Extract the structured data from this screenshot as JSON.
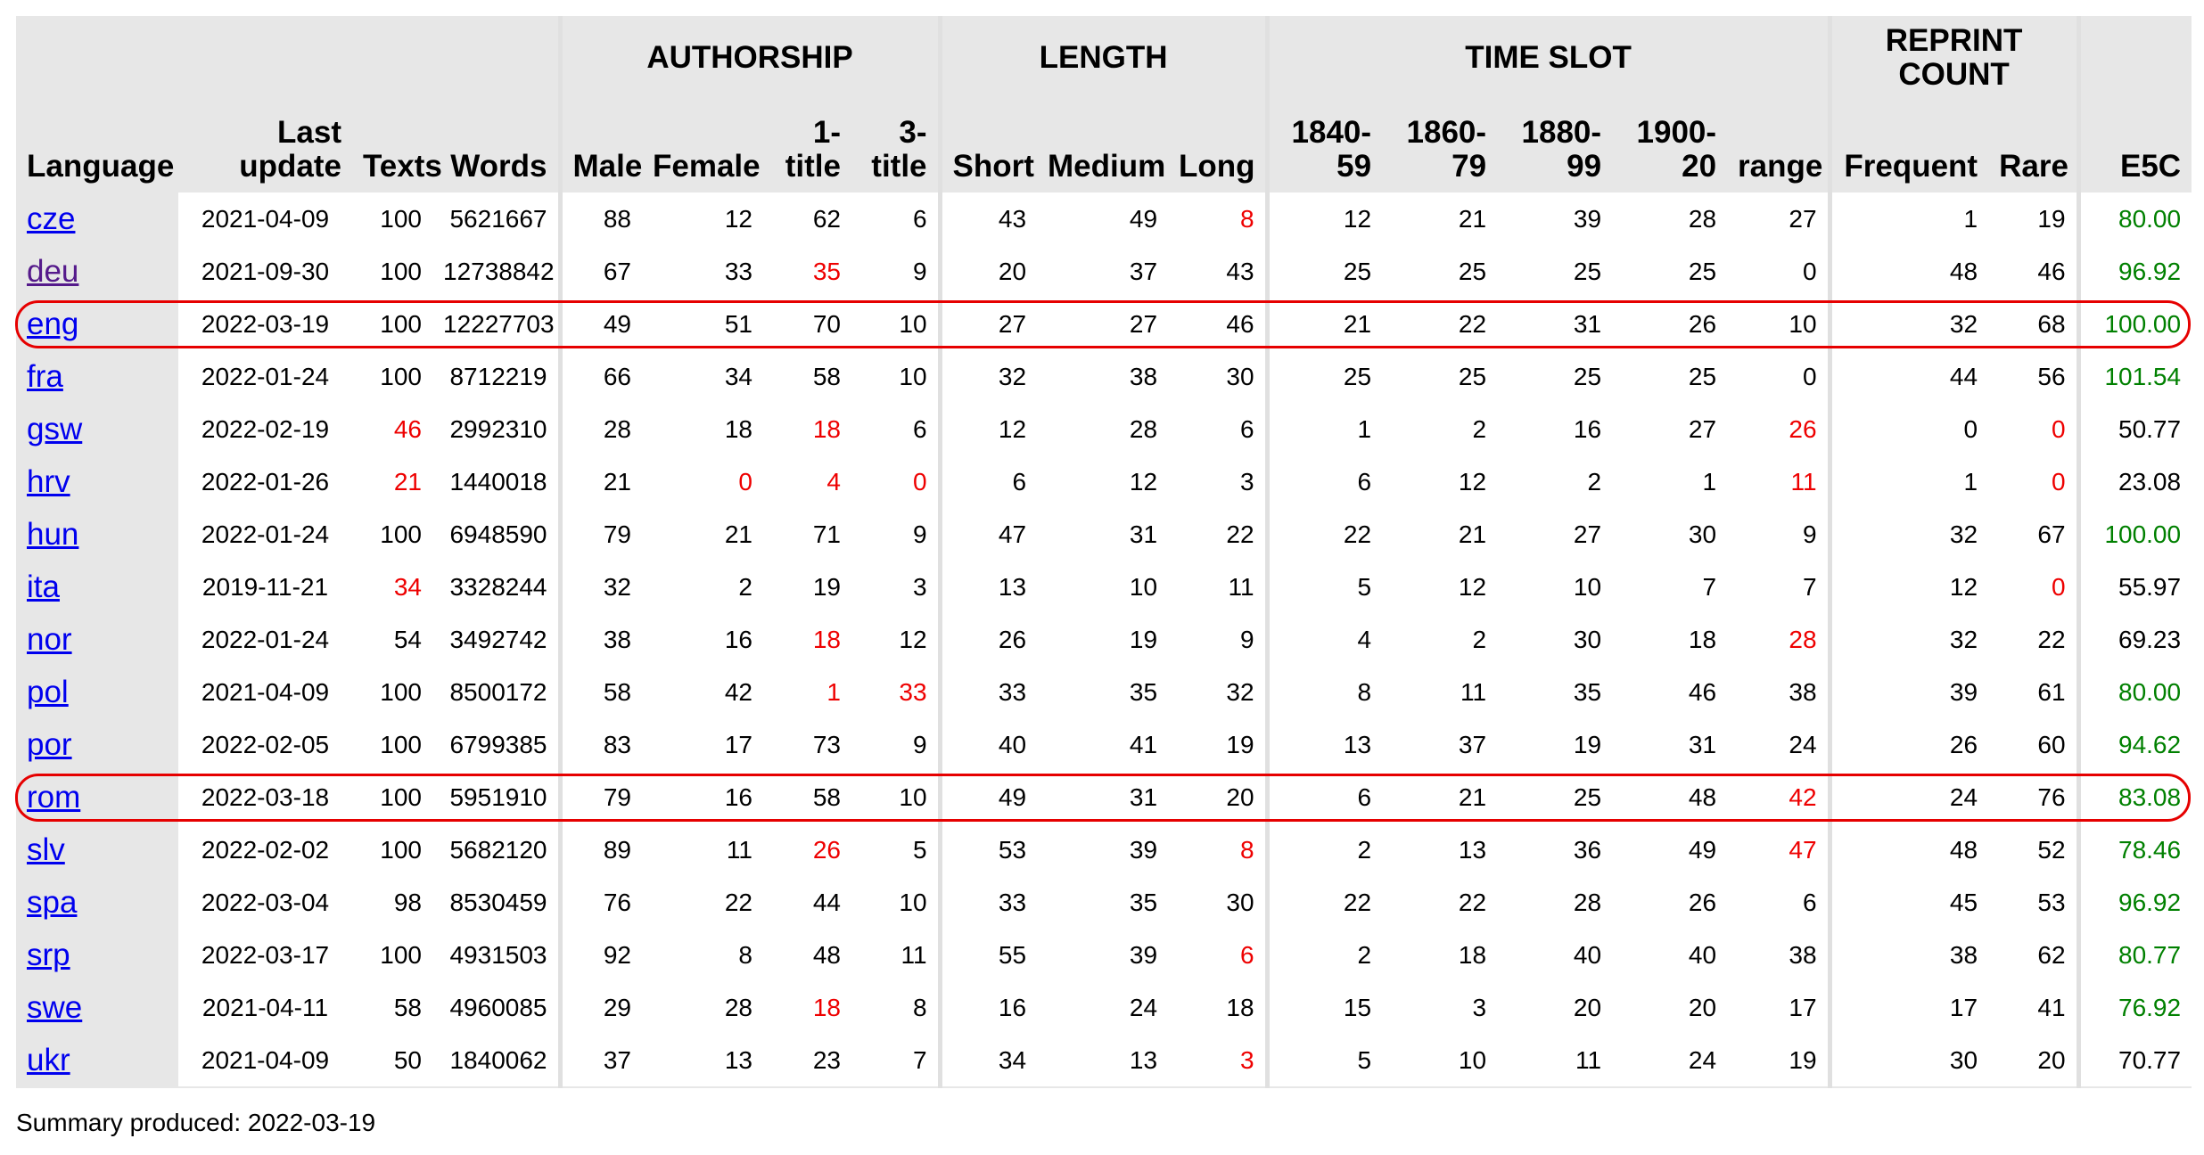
{
  "headers": {
    "groups": {
      "authorship": "AUTHORSHIP",
      "length": "LENGTH",
      "time_slot": "TIME SLOT",
      "reprint_count_line1": "REPRINT",
      "reprint_count_line2": "COUNT"
    },
    "columns": {
      "language": "Language",
      "last_update_line1": "Last",
      "last_update_line2": "update",
      "texts": "Texts",
      "words": "Words",
      "male": "Male",
      "female": "Female",
      "one_title_line1": "1-",
      "one_title_line2": "title",
      "three_title_line1": "3-",
      "three_title_line2": "title",
      "short": "Short",
      "medium": "Medium",
      "long": "Long",
      "t1840_line1": "1840-",
      "t1840_line2": "59",
      "t1860_line1": "1860-",
      "t1860_line2": "79",
      "t1880_line1": "1880-",
      "t1880_line2": "99",
      "t1900_line1": "1900-",
      "t1900_line2": "20",
      "range": "range",
      "frequent": "Frequent",
      "rare": "Rare",
      "e5c": "E5C"
    }
  },
  "colors": {
    "warn": "#ee0000",
    "good": "#008000",
    "highlight": "#e60000",
    "link": "#0000ee",
    "visited_link": "#551a8b"
  },
  "rows": [
    {
      "lang": "cze",
      "visited": false,
      "highlight": false,
      "last_update": "2021-04-09",
      "texts": "100",
      "words": "5621667",
      "male": "88",
      "female": "12",
      "one_title": "62",
      "three_title": "6",
      "short": "43",
      "medium": "49",
      "long": "8",
      "t1840": "12",
      "t1860": "21",
      "t1880": "39",
      "t1900": "28",
      "range": "27",
      "frequent": "1",
      "rare": "19",
      "e5c": "80.00",
      "red": [
        "long"
      ],
      "e5c_green": true
    },
    {
      "lang": "deu",
      "visited": true,
      "highlight": false,
      "last_update": "2021-09-30",
      "texts": "100",
      "words": "12738842",
      "male": "67",
      "female": "33",
      "one_title": "35",
      "three_title": "9",
      "short": "20",
      "medium": "37",
      "long": "43",
      "t1840": "25",
      "t1860": "25",
      "t1880": "25",
      "t1900": "25",
      "range": "0",
      "frequent": "48",
      "rare": "46",
      "e5c": "96.92",
      "red": [
        "one_title"
      ],
      "e5c_green": true
    },
    {
      "lang": "eng",
      "visited": false,
      "highlight": true,
      "last_update": "2022-03-19",
      "texts": "100",
      "words": "12227703",
      "male": "49",
      "female": "51",
      "one_title": "70",
      "three_title": "10",
      "short": "27",
      "medium": "27",
      "long": "46",
      "t1840": "21",
      "t1860": "22",
      "t1880": "31",
      "t1900": "26",
      "range": "10",
      "frequent": "32",
      "rare": "68",
      "e5c": "100.00",
      "red": [],
      "e5c_green": true
    },
    {
      "lang": "fra",
      "visited": false,
      "highlight": false,
      "last_update": "2022-01-24",
      "texts": "100",
      "words": "8712219",
      "male": "66",
      "female": "34",
      "one_title": "58",
      "three_title": "10",
      "short": "32",
      "medium": "38",
      "long": "30",
      "t1840": "25",
      "t1860": "25",
      "t1880": "25",
      "t1900": "25",
      "range": "0",
      "frequent": "44",
      "rare": "56",
      "e5c": "101.54",
      "red": [],
      "e5c_green": true
    },
    {
      "lang": "gsw",
      "visited": false,
      "highlight": false,
      "last_update": "2022-02-19",
      "texts": "46",
      "words": "2992310",
      "male": "28",
      "female": "18",
      "one_title": "18",
      "three_title": "6",
      "short": "12",
      "medium": "28",
      "long": "6",
      "t1840": "1",
      "t1860": "2",
      "t1880": "16",
      "t1900": "27",
      "range": "26",
      "frequent": "0",
      "rare": "0",
      "e5c": "50.77",
      "red": [
        "texts",
        "one_title",
        "range",
        "rare"
      ],
      "e5c_green": false
    },
    {
      "lang": "hrv",
      "visited": false,
      "highlight": false,
      "last_update": "2022-01-26",
      "texts": "21",
      "words": "1440018",
      "male": "21",
      "female": "0",
      "one_title": "4",
      "three_title": "0",
      "short": "6",
      "medium": "12",
      "long": "3",
      "t1840": "6",
      "t1860": "12",
      "t1880": "2",
      "t1900": "1",
      "range": "11",
      "frequent": "1",
      "rare": "0",
      "e5c": "23.08",
      "red": [
        "texts",
        "female",
        "one_title",
        "three_title",
        "range",
        "rare"
      ],
      "e5c_green": false
    },
    {
      "lang": "hun",
      "visited": false,
      "highlight": false,
      "last_update": "2022-01-24",
      "texts": "100",
      "words": "6948590",
      "male": "79",
      "female": "21",
      "one_title": "71",
      "three_title": "9",
      "short": "47",
      "medium": "31",
      "long": "22",
      "t1840": "22",
      "t1860": "21",
      "t1880": "27",
      "t1900": "30",
      "range": "9",
      "frequent": "32",
      "rare": "67",
      "e5c": "100.00",
      "red": [],
      "e5c_green": true
    },
    {
      "lang": "ita",
      "visited": false,
      "highlight": false,
      "last_update": "2019-11-21",
      "texts": "34",
      "words": "3328244",
      "male": "32",
      "female": "2",
      "one_title": "19",
      "three_title": "3",
      "short": "13",
      "medium": "10",
      "long": "11",
      "t1840": "5",
      "t1860": "12",
      "t1880": "10",
      "t1900": "7",
      "range": "7",
      "frequent": "12",
      "rare": "0",
      "e5c": "55.97",
      "red": [
        "texts",
        "rare"
      ],
      "e5c_green": false
    },
    {
      "lang": "nor",
      "visited": false,
      "highlight": false,
      "last_update": "2022-01-24",
      "texts": "54",
      "words": "3492742",
      "male": "38",
      "female": "16",
      "one_title": "18",
      "three_title": "12",
      "short": "26",
      "medium": "19",
      "long": "9",
      "t1840": "4",
      "t1860": "2",
      "t1880": "30",
      "t1900": "18",
      "range": "28",
      "frequent": "32",
      "rare": "22",
      "e5c": "69.23",
      "red": [
        "one_title",
        "range"
      ],
      "e5c_green": false
    },
    {
      "lang": "pol",
      "visited": false,
      "highlight": false,
      "last_update": "2021-04-09",
      "texts": "100",
      "words": "8500172",
      "male": "58",
      "female": "42",
      "one_title": "1",
      "three_title": "33",
      "short": "33",
      "medium": "35",
      "long": "32",
      "t1840": "8",
      "t1860": "11",
      "t1880": "35",
      "t1900": "46",
      "range": "38",
      "frequent": "39",
      "rare": "61",
      "e5c": "80.00",
      "red": [
        "one_title",
        "three_title"
      ],
      "e5c_green": true
    },
    {
      "lang": "por",
      "visited": false,
      "highlight": false,
      "last_update": "2022-02-05",
      "texts": "100",
      "words": "6799385",
      "male": "83",
      "female": "17",
      "one_title": "73",
      "three_title": "9",
      "short": "40",
      "medium": "41",
      "long": "19",
      "t1840": "13",
      "t1860": "37",
      "t1880": "19",
      "t1900": "31",
      "range": "24",
      "frequent": "26",
      "rare": "60",
      "e5c": "94.62",
      "red": [],
      "e5c_green": true
    },
    {
      "lang": "rom",
      "visited": false,
      "highlight": true,
      "last_update": "2022-03-18",
      "texts": "100",
      "words": "5951910",
      "male": "79",
      "female": "16",
      "one_title": "58",
      "three_title": "10",
      "short": "49",
      "medium": "31",
      "long": "20",
      "t1840": "6",
      "t1860": "21",
      "t1880": "25",
      "t1900": "48",
      "range": "42",
      "frequent": "24",
      "rare": "76",
      "e5c": "83.08",
      "red": [
        "range"
      ],
      "e5c_green": true
    },
    {
      "lang": "slv",
      "visited": false,
      "highlight": false,
      "last_update": "2022-02-02",
      "texts": "100",
      "words": "5682120",
      "male": "89",
      "female": "11",
      "one_title": "26",
      "three_title": "5",
      "short": "53",
      "medium": "39",
      "long": "8",
      "t1840": "2",
      "t1860": "13",
      "t1880": "36",
      "t1900": "49",
      "range": "47",
      "frequent": "48",
      "rare": "52",
      "e5c": "78.46",
      "red": [
        "one_title",
        "long",
        "range"
      ],
      "e5c_green": true
    },
    {
      "lang": "spa",
      "visited": false,
      "highlight": false,
      "last_update": "2022-03-04",
      "texts": "98",
      "words": "8530459",
      "male": "76",
      "female": "22",
      "one_title": "44",
      "three_title": "10",
      "short": "33",
      "medium": "35",
      "long": "30",
      "t1840": "22",
      "t1860": "22",
      "t1880": "28",
      "t1900": "26",
      "range": "6",
      "frequent": "45",
      "rare": "53",
      "e5c": "96.92",
      "red": [],
      "e5c_green": true
    },
    {
      "lang": "srp",
      "visited": false,
      "highlight": false,
      "last_update": "2022-03-17",
      "texts": "100",
      "words": "4931503",
      "male": "92",
      "female": "8",
      "one_title": "48",
      "three_title": "11",
      "short": "55",
      "medium": "39",
      "long": "6",
      "t1840": "2",
      "t1860": "18",
      "t1880": "40",
      "t1900": "40",
      "range": "38",
      "frequent": "38",
      "rare": "62",
      "e5c": "80.77",
      "red": [
        "long"
      ],
      "e5c_green": true
    },
    {
      "lang": "swe",
      "visited": false,
      "highlight": false,
      "last_update": "2021-04-11",
      "texts": "58",
      "words": "4960085",
      "male": "29",
      "female": "28",
      "one_title": "18",
      "three_title": "8",
      "short": "16",
      "medium": "24",
      "long": "18",
      "t1840": "15",
      "t1860": "3",
      "t1880": "20",
      "t1900": "20",
      "range": "17",
      "frequent": "17",
      "rare": "41",
      "e5c": "76.92",
      "red": [
        "one_title"
      ],
      "e5c_green": true
    },
    {
      "lang": "ukr",
      "visited": false,
      "highlight": false,
      "last_update": "2021-04-09",
      "texts": "50",
      "words": "1840062",
      "male": "37",
      "female": "13",
      "one_title": "23",
      "three_title": "7",
      "short": "34",
      "medium": "13",
      "long": "3",
      "t1840": "5",
      "t1860": "10",
      "t1880": "11",
      "t1900": "24",
      "range": "19",
      "frequent": "30",
      "rare": "20",
      "e5c": "70.77",
      "red": [
        "long"
      ],
      "e5c_green": false
    }
  ],
  "summary": {
    "label": "Summary produced:",
    "date": "2022-03-19"
  }
}
